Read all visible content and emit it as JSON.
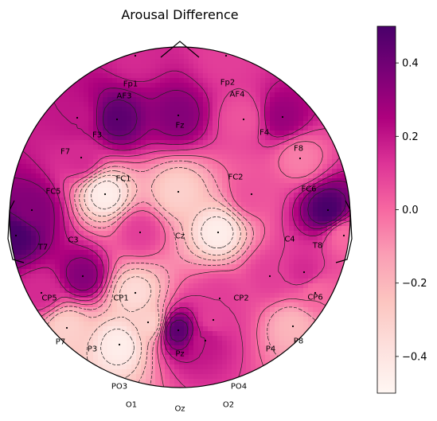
{
  "chart_data": {
    "type": "heatmap",
    "subtype": "eeg-topomap",
    "title": "Arousal Difference",
    "colormap": "RdPu",
    "colorbar": {
      "vmin": -0.5,
      "vmax": 0.5,
      "ticks": [
        0.4,
        0.2,
        0.0,
        -0.2,
        -0.4
      ],
      "tick_labels": [
        "0.4",
        "0.2",
        "0.0",
        "−0.2",
        "−0.4"
      ]
    },
    "electrodes": [
      {
        "label": "Fp1",
        "value": 0.15
      },
      {
        "label": "Fp2",
        "value": 0.1
      },
      {
        "label": "AF3",
        "value": 0.45
      },
      {
        "label": "AF4",
        "value": 0.05
      },
      {
        "label": "F3",
        "value": 0.2
      },
      {
        "label": "Fz",
        "value": 0.35
      },
      {
        "label": "F4",
        "value": 0.3
      },
      {
        "label": "F7",
        "value": 0.15
      },
      {
        "label": "F8",
        "value": -0.05
      },
      {
        "label": "FC1",
        "value": -0.45
      },
      {
        "label": "FC2",
        "value": 0.05
      },
      {
        "label": "FC5",
        "value": 0.35
      },
      {
        "label": "FC6",
        "value": 0.5
      },
      {
        "label": "Cz",
        "value": -0.3
      },
      {
        "label": "C3",
        "value": 0.1
      },
      {
        "label": "C4",
        "value": -0.45
      },
      {
        "label": "T7",
        "value": 0.5
      },
      {
        "label": "T8",
        "value": 0.0
      },
      {
        "label": "CP1",
        "value": 0.35
      },
      {
        "label": "CP2",
        "value": 0.1
      },
      {
        "label": "CP5",
        "value": 0.15
      },
      {
        "label": "CP6",
        "value": 0.0
      },
      {
        "label": "P3",
        "value": -0.35
      },
      {
        "label": "Pz",
        "value": 0.1
      },
      {
        "label": "P4",
        "value": 0.15
      },
      {
        "label": "P7",
        "value": -0.3
      },
      {
        "label": "P8",
        "value": -0.2
      },
      {
        "label": "PO3",
        "value": -0.45
      },
      {
        "label": "PO4",
        "value": 0.1
      },
      {
        "label": "O1",
        "value": -0.3
      },
      {
        "label": "Oz",
        "value": 0.45
      },
      {
        "label": "O2",
        "value": 0.2
      }
    ]
  }
}
